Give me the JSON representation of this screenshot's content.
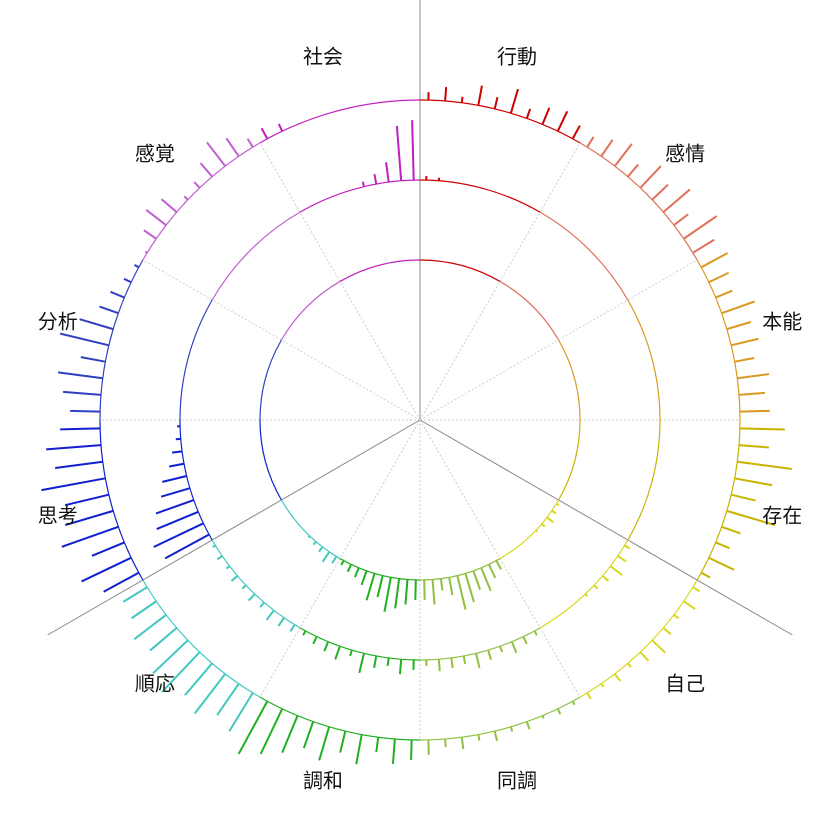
{
  "chart_data": {
    "type": "radial-bar",
    "categories": [
      "行動",
      "感情",
      "本能",
      "存在",
      "自己",
      "同調",
      "調和",
      "順応",
      "思考",
      "分析",
      "感覚",
      "社会"
    ],
    "colors": [
      "#cc0000",
      "#e0705a",
      "#d89a20",
      "#c8b400",
      "#d8d820",
      "#90c040",
      "#20b020",
      "#40c8c0",
      "#1020d0",
      "#3040c0",
      "#c060d0",
      "#c020c0"
    ],
    "rings": [
      {
        "values": [
          [
            8,
            14,
            6,
            20,
            12,
            25,
            10,
            18,
            22,
            15
          ],
          [
            12,
            20,
            28,
            16,
            30,
            22,
            35,
            18,
            40,
            25
          ],
          [
            30,
            22,
            18,
            35,
            25,
            28,
            20,
            32,
            26,
            30
          ],
          [
            45,
            30,
            55,
            38,
            25,
            50,
            20,
            15,
            28,
            10
          ],
          [
            8,
            14,
            6,
            10,
            18,
            12,
            5,
            9,
            4,
            7
          ],
          [
            4,
            6,
            3,
            8,
            5,
            10,
            6,
            12,
            8,
            15
          ],
          [
            20,
            25,
            15,
            30,
            22,
            35,
            28,
            40,
            50,
            60
          ],
          [
            45,
            38,
            50,
            42,
            55,
            48,
            35,
            40,
            30,
            28
          ],
          [
            40,
            55,
            35,
            60,
            50,
            45,
            65,
            48,
            55,
            40
          ],
          [
            30,
            38,
            45,
            25,
            50,
            35,
            20,
            15,
            8,
            5
          ],
          [
            2,
            15,
            25,
            20,
            5,
            8,
            18,
            30,
            22,
            10
          ],
          [
            12,
            8,
            0,
            0,
            0,
            0,
            0,
            0,
            0,
            0
          ]
        ]
      },
      {
        "values": [
          [
            4,
            3,
            0,
            0,
            0,
            0,
            0,
            0,
            0,
            0
          ],
          [
            0,
            0,
            0,
            0,
            0,
            0,
            0,
            0,
            0,
            0
          ],
          [
            0,
            0,
            0,
            0,
            0,
            0,
            0,
            0,
            0,
            0
          ],
          [
            0,
            0,
            0,
            0,
            0,
            0,
            0,
            0,
            0,
            0
          ],
          [
            6,
            10,
            15,
            8,
            5,
            3,
            0,
            0,
            0,
            0
          ],
          [
            5,
            8,
            12,
            6,
            10,
            15,
            8,
            10,
            12,
            6
          ],
          [
            10,
            15,
            8,
            12,
            20,
            6,
            14,
            10,
            8,
            5
          ],
          [
            8,
            10,
            12,
            6,
            9,
            5,
            8,
            4,
            6,
            3
          ],
          [
            50,
            55,
            45,
            40,
            30,
            25,
            15,
            10,
            5,
            3
          ],
          [
            0,
            0,
            0,
            0,
            0,
            0,
            0,
            0,
            0,
            0
          ],
          [
            0,
            0,
            0,
            0,
            0,
            0,
            0,
            0,
            0,
            0
          ],
          [
            0,
            0,
            0,
            0,
            0,
            5,
            10,
            20,
            55,
            60
          ]
        ]
      },
      {
        "values": [
          [
            0,
            0,
            0,
            0,
            0,
            0,
            0,
            0,
            0,
            0
          ],
          [
            0,
            0,
            0,
            0,
            0,
            0,
            0,
            0,
            0,
            0
          ],
          [
            0,
            0,
            0,
            0,
            0,
            0,
            0,
            0,
            0,
            0
          ],
          [
            0,
            0,
            0,
            0,
            0,
            0,
            0,
            0,
            0,
            0
          ],
          [
            3,
            5,
            8,
            4,
            2,
            0,
            0,
            0,
            0,
            0
          ],
          [
            10,
            15,
            25,
            20,
            30,
            35,
            18,
            12,
            25,
            20
          ],
          [
            20,
            25,
            30,
            35,
            22,
            28,
            15,
            10,
            8,
            5
          ],
          [
            8,
            12,
            6,
            4,
            2,
            0,
            0,
            0,
            0,
            0
          ],
          [
            0,
            0,
            0,
            0,
            0,
            0,
            0,
            0,
            0,
            0
          ],
          [
            0,
            0,
            0,
            0,
            0,
            0,
            0,
            0,
            0,
            0
          ],
          [
            0,
            0,
            0,
            0,
            0,
            0,
            0,
            0,
            0,
            0
          ],
          [
            0,
            0,
            0,
            0,
            0,
            0,
            0,
            0,
            0,
            0
          ]
        ]
      }
    ]
  }
}
